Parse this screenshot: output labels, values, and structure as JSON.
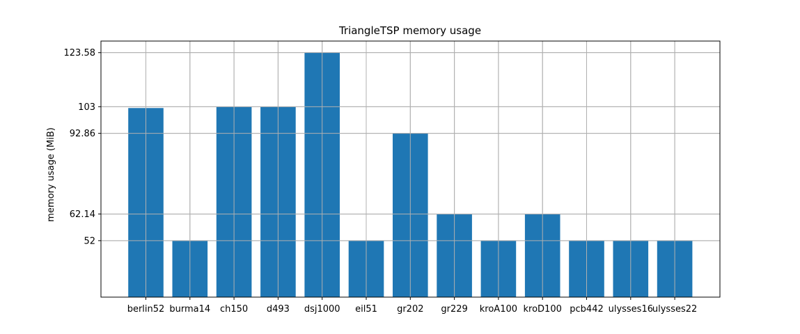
{
  "chart_data": {
    "type": "bar",
    "title": "TriangleTSP memory usage",
    "xlabel": "",
    "ylabel": "memory usage (MiB)",
    "categories": [
      "berlin52",
      "burma14",
      "ch150",
      "d493",
      "dsj1000",
      "eil51",
      "gr202",
      "gr229",
      "kroA100",
      "kroD100",
      "pcb442",
      "ulysses16",
      "ulysses22"
    ],
    "values": [
      102.5,
      52,
      103,
      103,
      123.58,
      52,
      92.86,
      62.14,
      52,
      62.14,
      52,
      52,
      52
    ],
    "yticks": [
      52,
      62.14,
      92.86,
      103,
      123.58
    ],
    "ytick_labels": [
      "52",
      "62.14",
      "92.86",
      "103",
      "123.58"
    ],
    "ylim": [
      30.5,
      128
    ],
    "grid": true,
    "bar_color": "#1f77b4"
  }
}
